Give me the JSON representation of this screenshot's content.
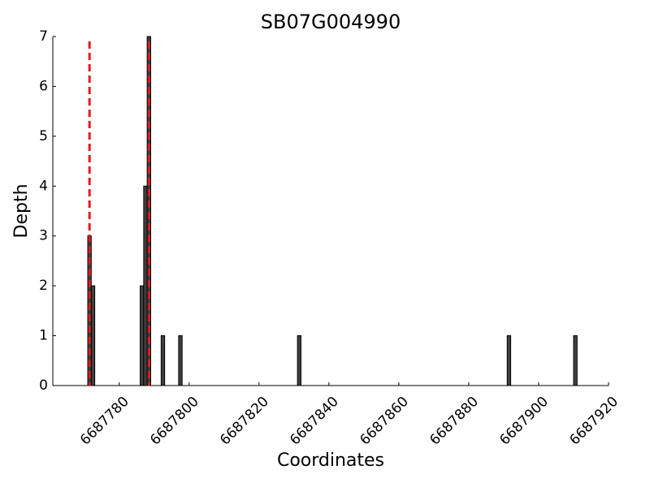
{
  "chart_data": {
    "type": "bar",
    "title": "SB07G004990",
    "x_label": "Coordinates",
    "y_label": "Depth",
    "x": [
      6687771,
      6687772,
      6687786,
      6687787,
      6687788,
      6687792,
      6687797,
      6687831,
      6687891,
      6687910
    ],
    "values": [
      3,
      2,
      2,
      4,
      7,
      1,
      1,
      1,
      1,
      1
    ],
    "color": "#404040",
    "xlim": [
      6687761,
      6687920
    ],
    "xticks": [
      6687780,
      6687800,
      6687820,
      6687840,
      6687860,
      6687880,
      6687900,
      6687920
    ],
    "ylim": [
      0,
      7
    ],
    "yticks": [
      0,
      1,
      2,
      3,
      4,
      5,
      6,
      7
    ],
    "vlines": [
      6687771.5,
      6687788.5
    ],
    "vline_color": "#e31a1c",
    "grid": false
  }
}
